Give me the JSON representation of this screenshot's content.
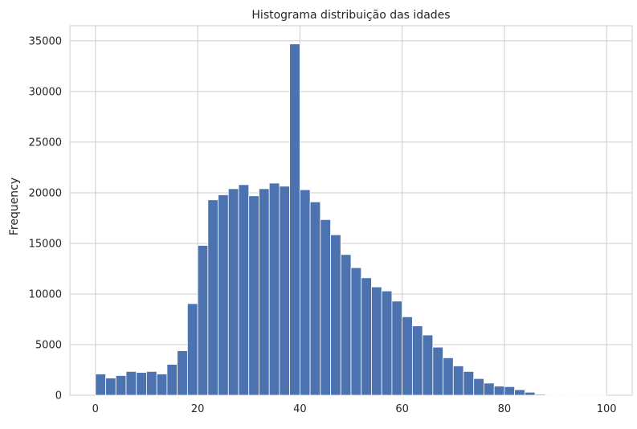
{
  "chart_data": {
    "type": "bar",
    "title": "Histograma distribuição das idades",
    "xlabel": "",
    "ylabel": "Frequency",
    "xlim": [
      -5,
      105
    ],
    "ylim": [
      0,
      36500
    ],
    "xticks": [
      0,
      20,
      40,
      60,
      80,
      100
    ],
    "xtick_labels": [
      "0",
      "20",
      "40",
      "60",
      "80",
      "100"
    ],
    "yticks": [
      0,
      5000,
      10000,
      15000,
      20000,
      25000,
      30000,
      35000
    ],
    "ytick_labels": [
      "0",
      "5000",
      "10000",
      "15000",
      "20000",
      "25000",
      "30000",
      "35000"
    ],
    "grid": true,
    "bin_start": 0,
    "bin_width": 2,
    "values": [
      2100,
      1700,
      1950,
      2350,
      2250,
      2350,
      2100,
      3050,
      4400,
      9050,
      14800,
      19300,
      19800,
      20400,
      20800,
      19700,
      20400,
      20950,
      20650,
      34700,
      20300,
      19100,
      17350,
      15850,
      13900,
      12600,
      11600,
      10700,
      10300,
      9300,
      7750,
      6850,
      5950,
      4750,
      3700,
      2900,
      2350,
      1650,
      1200,
      900,
      850,
      550,
      300,
      100,
      50,
      30,
      20,
      10,
      5,
      5
    ],
    "bar_color": "#4c72b0",
    "grid_color": "#cccccc"
  }
}
